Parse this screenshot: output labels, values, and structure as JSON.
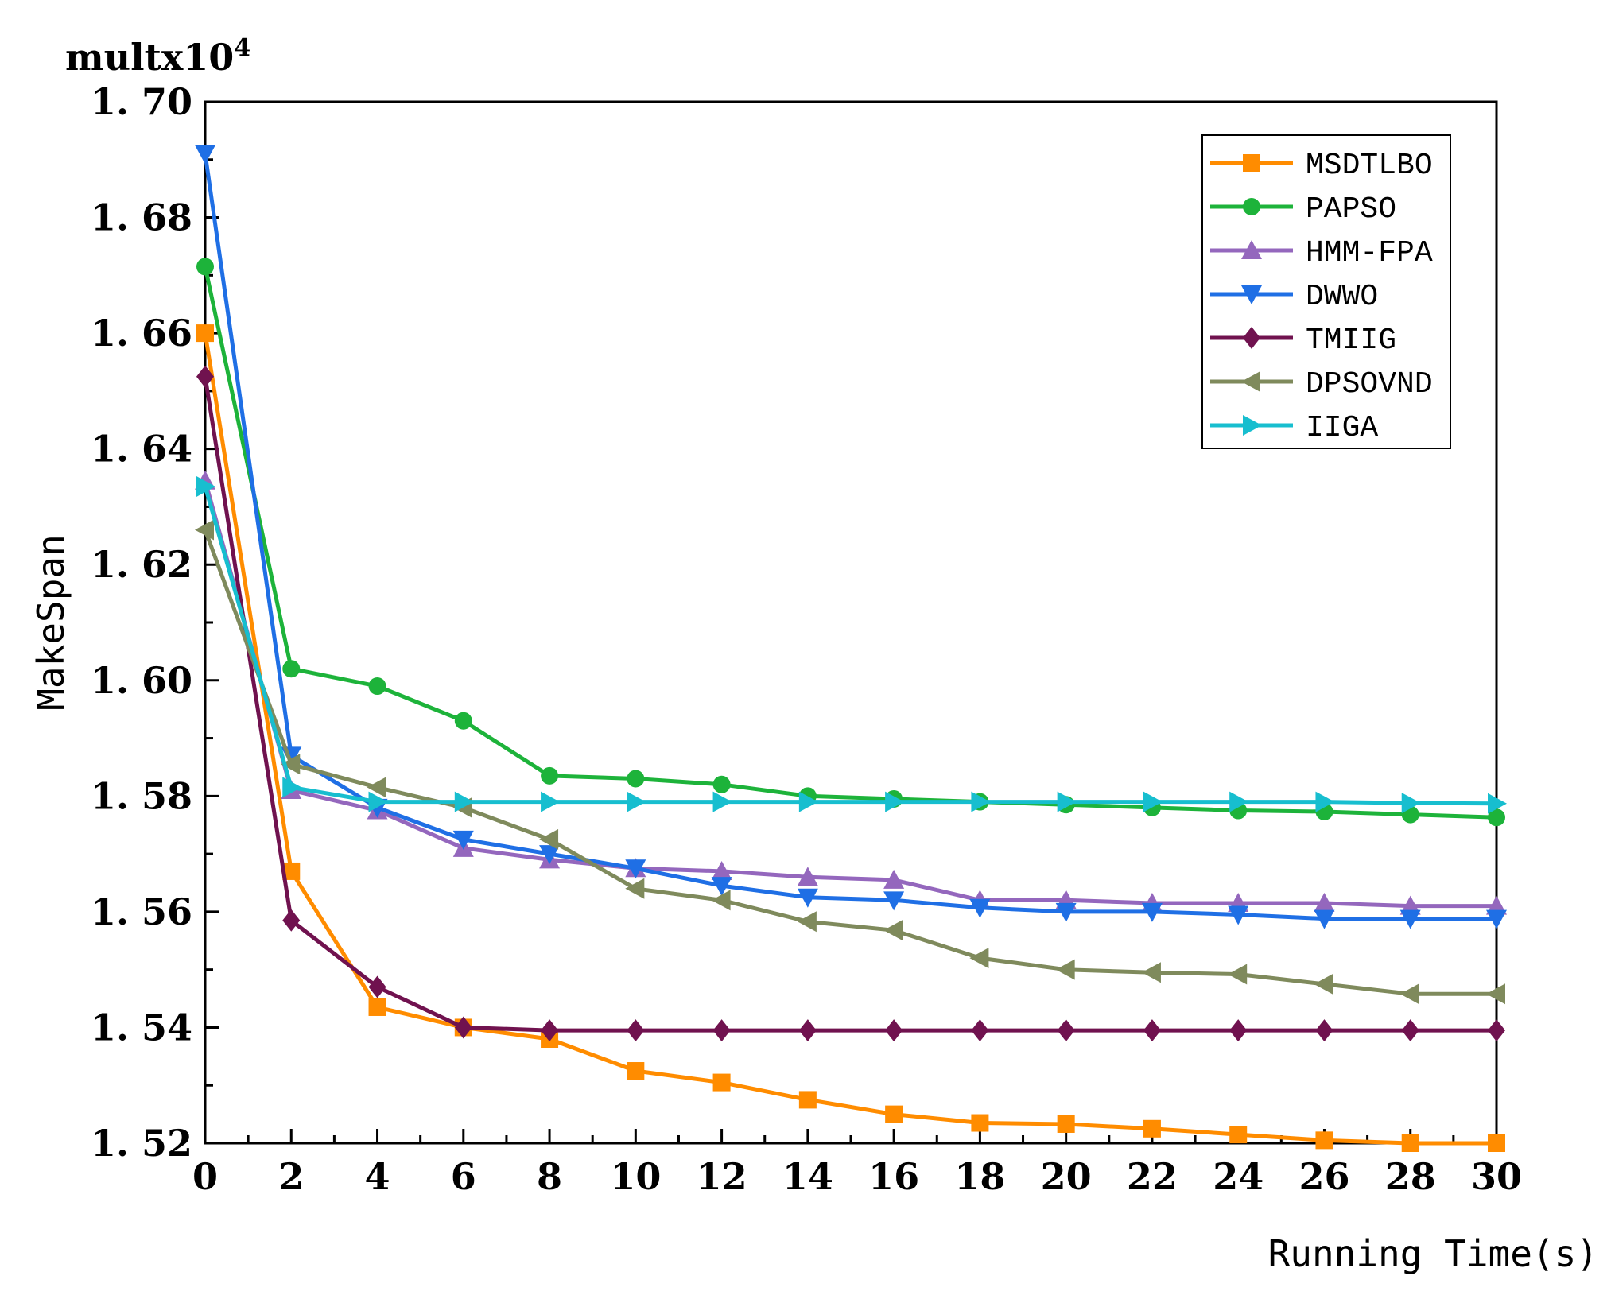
{
  "chart_data": {
    "type": "line",
    "title": "",
    "xlabel": "Running Time(s)",
    "ylabel": "MakeSpan",
    "multiplier_base": "multx10",
    "multiplier_exp": "4",
    "xlim": [
      0,
      30
    ],
    "ylim": [
      1.52,
      1.7
    ],
    "x_ticks": [
      "0",
      "2",
      "4",
      "6",
      "8",
      "10",
      "12",
      "14",
      "16",
      "18",
      "20",
      "22",
      "24",
      "26",
      "28",
      "30"
    ],
    "y_ticks": [
      "1.52",
      "1.54",
      "1.56",
      "1.58",
      "1.60",
      "1.62",
      "1.64",
      "1.66",
      "1.68",
      "1.70"
    ],
    "y_tick_labels": [
      "1. 52",
      "1. 54",
      "1. 56",
      "1. 58",
      "1. 60",
      "1. 62",
      "1. 64",
      "1. 66",
      "1. 68",
      "1. 70"
    ],
    "grid": false,
    "legend_position": "top-right",
    "x": [
      0,
      2,
      4,
      6,
      8,
      10,
      12,
      14,
      16,
      18,
      20,
      22,
      24,
      26,
      28,
      30
    ],
    "series": [
      {
        "name": "MSDTLBO",
        "color": "#FF8C00",
        "marker": "square",
        "values": [
          1.66,
          1.567,
          1.5435,
          1.54,
          1.538,
          1.5325,
          1.5305,
          1.5275,
          1.525,
          1.5235,
          1.5233,
          1.5225,
          1.5215,
          1.5205,
          1.52,
          1.52
        ]
      },
      {
        "name": "PAPSO",
        "color": "#1DB33A",
        "marker": "circle",
        "values": [
          1.6715,
          1.602,
          1.599,
          1.593,
          1.5835,
          1.583,
          1.582,
          1.58,
          1.5795,
          1.579,
          1.5785,
          1.578,
          1.5775,
          1.5773,
          1.5768,
          1.5763
        ]
      },
      {
        "name": "HMM-FPA",
        "color": "#9467BD",
        "marker": "triangle-up",
        "values": [
          1.6345,
          1.581,
          1.5775,
          1.571,
          1.569,
          1.5675,
          1.567,
          1.566,
          1.5655,
          1.562,
          1.562,
          1.5615,
          1.5615,
          1.5615,
          1.561,
          1.561
        ]
      },
      {
        "name": "DWWO",
        "color": "#1F6FE5",
        "marker": "triangle-down",
        "values": [
          1.691,
          1.587,
          1.578,
          1.5725,
          1.57,
          1.5675,
          1.5645,
          1.5625,
          1.562,
          1.5607,
          1.56,
          1.56,
          1.5595,
          1.5588,
          1.5588,
          1.5588
        ]
      },
      {
        "name": "TMIIG",
        "color": "#70124F",
        "marker": "diamond",
        "values": [
          1.6525,
          1.5585,
          1.547,
          1.54,
          1.5395,
          1.5395,
          1.5395,
          1.5395,
          1.5395,
          1.5395,
          1.5395,
          1.5395,
          1.5395,
          1.5395,
          1.5395,
          1.5395
        ]
      },
      {
        "name": "DPSOVND",
        "color": "#7F8A5C",
        "marker": "triangle-left",
        "values": [
          1.626,
          1.5855,
          1.5815,
          1.578,
          1.5725,
          1.564,
          1.562,
          1.5583,
          1.5568,
          1.552,
          1.55,
          1.5495,
          1.5492,
          1.5475,
          1.5458,
          1.5458
        ]
      },
      {
        "name": "IIGA",
        "color": "#17BECF",
        "marker": "triangle-right",
        "values": [
          1.6335,
          1.5815,
          1.579,
          1.579,
          1.579,
          1.579,
          1.579,
          1.579,
          1.579,
          1.579,
          1.579,
          1.579,
          1.579,
          1.579,
          1.5788,
          1.5787
        ]
      }
    ]
  }
}
